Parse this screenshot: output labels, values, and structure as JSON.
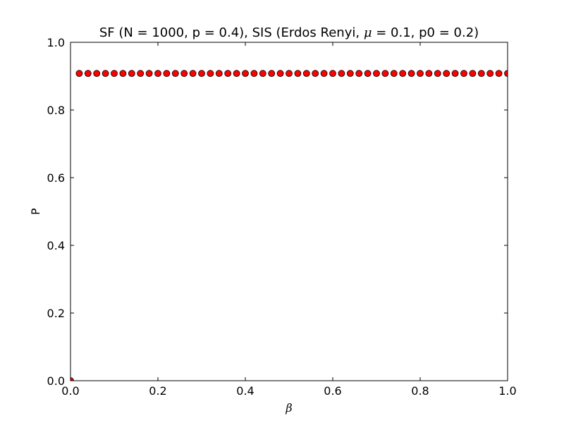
{
  "chart_data": {
    "type": "scatter",
    "title_parts": {
      "before": "SF (N = 1000, p = 0.4), SIS (Erdos Renyi, ",
      "mu_symbol": "μ",
      "after": " = 0.1, p0 = 0.2)"
    },
    "xlabel": "β",
    "ylabel": "P",
    "xlim": [
      0.0,
      1.0
    ],
    "ylim": [
      0.0,
      1.0
    ],
    "x_ticks": [
      0.0,
      0.2,
      0.4,
      0.6,
      0.8,
      1.0
    ],
    "y_ticks": [
      0.0,
      0.2,
      0.4,
      0.6,
      0.8,
      1.0
    ],
    "x_tick_labels": [
      "0.0",
      "0.2",
      "0.4",
      "0.6",
      "0.8",
      "1.0"
    ],
    "y_tick_labels": [
      "0.0",
      "0.2",
      "0.4",
      "0.6",
      "0.8",
      "1.0"
    ],
    "grid": false,
    "marker_color": "#ff0000",
    "marker_edge_color": "#000000",
    "series": [
      {
        "x": [
          0.0,
          0.02,
          0.04,
          0.06,
          0.08,
          0.1,
          0.12,
          0.14,
          0.16,
          0.18,
          0.2,
          0.22,
          0.24,
          0.26,
          0.28,
          0.3,
          0.32,
          0.34,
          0.36,
          0.38,
          0.4,
          0.42,
          0.44,
          0.46,
          0.48,
          0.5,
          0.52,
          0.54,
          0.56,
          0.58,
          0.6,
          0.62,
          0.64,
          0.66,
          0.68,
          0.7,
          0.72,
          0.74,
          0.76,
          0.78,
          0.8,
          0.82,
          0.84,
          0.86,
          0.88,
          0.9,
          0.92,
          0.94,
          0.96,
          0.98,
          1.0
        ],
        "y": [
          0.0,
          0.908,
          0.908,
          0.908,
          0.908,
          0.908,
          0.908,
          0.908,
          0.908,
          0.908,
          0.908,
          0.908,
          0.908,
          0.908,
          0.908,
          0.908,
          0.908,
          0.908,
          0.908,
          0.908,
          0.908,
          0.908,
          0.908,
          0.908,
          0.908,
          0.908,
          0.908,
          0.908,
          0.908,
          0.908,
          0.908,
          0.908,
          0.908,
          0.908,
          0.908,
          0.908,
          0.908,
          0.908,
          0.908,
          0.908,
          0.908,
          0.908,
          0.908,
          0.908,
          0.908,
          0.908,
          0.908,
          0.908,
          0.908,
          0.908,
          0.908
        ]
      }
    ]
  }
}
